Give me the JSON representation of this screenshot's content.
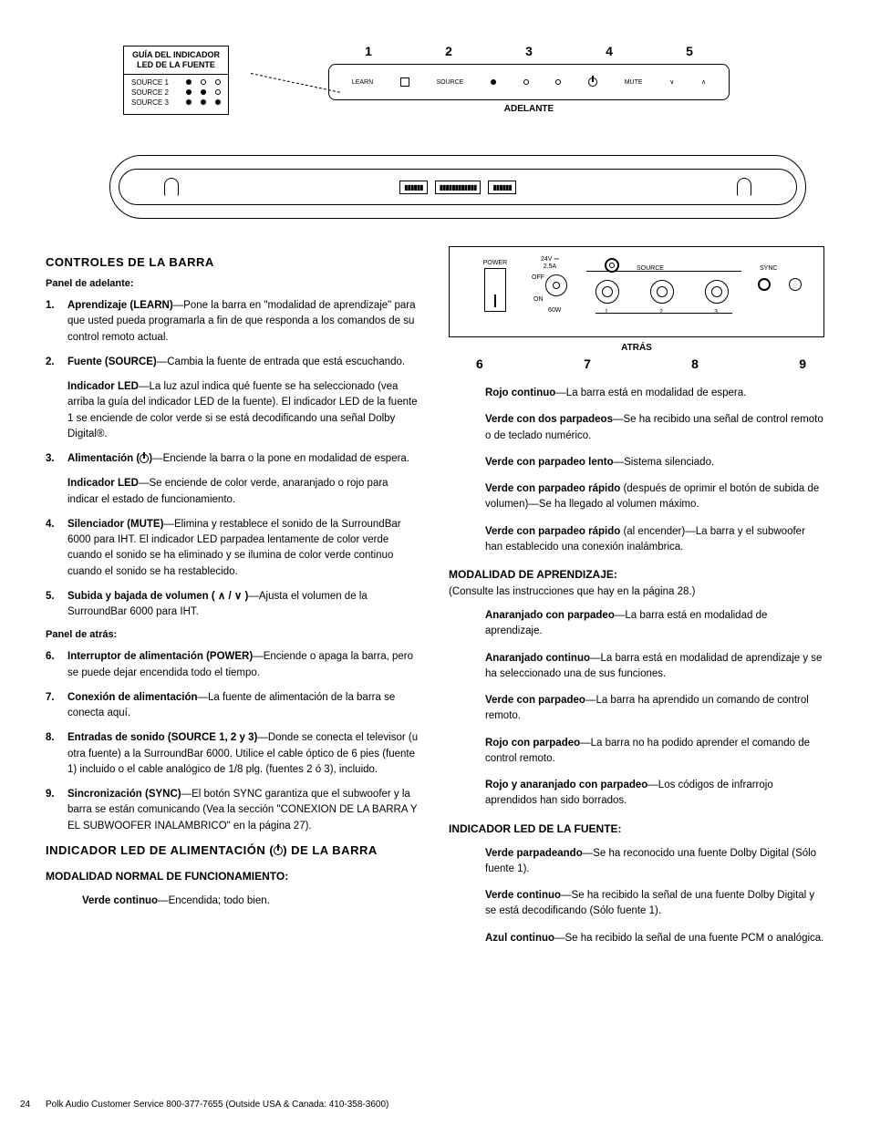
{
  "led_guide": {
    "title_l1": "GUÍA DEL INDICADOR",
    "title_l2": "LED DE LA FUENTE",
    "rows": [
      "SOURCE 1",
      "SOURCE 2",
      "SOURCE 3"
    ]
  },
  "front_nums": [
    "1",
    "2",
    "3",
    "4",
    "5"
  ],
  "front_labels": {
    "learn": "LEARN",
    "source": "SOURCE",
    "mute": "MUTE",
    "adelante": "ADELANTE"
  },
  "back_panel": {
    "power": "POWER",
    "v": "24V",
    "a": "2.5A",
    "off": "OFF",
    "on": "ON",
    "w": "60W",
    "source": "SOURCE",
    "sync": "SYNC",
    "n1": "1",
    "n2": "2",
    "n3": "3",
    "atras": "ATRÁS"
  },
  "back_nums": [
    "6",
    "7",
    "8",
    "9"
  ],
  "h_controles": "CONTROLES DE LA BARRA",
  "sub_front": "Panel de adelante:",
  "items_front": [
    {
      "n": "1.",
      "t": "Aprendizaje (LEARN)",
      "d": "—Pone la barra en \"modalidad de aprendizaje\" para que usted pueda programarla a fin de que responda a los comandos de su control remoto actual."
    },
    {
      "n": "2.",
      "t": "Fuente (SOURCE)",
      "d": "—Cambia la fuente de entrada que está escuchando."
    }
  ],
  "para_led1": {
    "t": "Indicador LED",
    "d": "—La luz azul indica qué fuente se ha seleccionado (vea arriba la guía del indicador LED de la fuente). El indicador LED de la fuente 1 se enciende de color verde si se está decodificando una señal Dolby Digital®."
  },
  "item3": {
    "n": "3.",
    "t": "Alimentación (",
    "t2": ")",
    "d": "—Enciende la barra o la pone en modalidad de espera."
  },
  "para_led2": {
    "t": "Indicador LED",
    "d": "—Se enciende de color verde, anaranjado o rojo para indicar el estado de funcionamiento."
  },
  "item4": {
    "n": "4.",
    "t": "Silenciador (MUTE)",
    "d": "—Elimina y restablece el sonido de la SurroundBar 6000 para IHT. El indicador LED parpadea lentamente de color verde cuando el sonido se ha eliminado y se ilumina de color verde continuo cuando el sonido se ha restablecido."
  },
  "item5": {
    "n": "5.",
    "t": "Subida y bajada de volumen ( ",
    "t2": " / ",
    "t3": " )",
    "d": "—Ajusta el volumen de la SurroundBar 6000 para IHT."
  },
  "sub_back": "Panel de atrás:",
  "items_back": [
    {
      "n": "6.",
      "t": "Interruptor de alimentación (POWER)",
      "d": "—Enciende o apaga la barra, pero se puede dejar encendida todo el tiempo."
    },
    {
      "n": "7.",
      "t": "Conexión de alimentación",
      "d": "—La fuente de alimentación de la barra se conecta aquí."
    },
    {
      "n": "8.",
      "t": "Entradas de sonido (SOURCE 1, 2 y 3)",
      "d": "—Donde se conecta el televisor (u otra fuente) a la SurroundBar 6000. Utilice el cable óptico de 6 pies (fuente 1) incluido o el cable analógico de 1/8 plg. (fuentes 2 ó 3), incluido."
    },
    {
      "n": "9.",
      "t": "Sincronización (SYNC)",
      "d": "—El botón SYNC garantiza que el subwoofer y la barra se están comunicando (Vea la sección \"CONEXION DE LA BARRA Y EL SUBWOOFER INALAMBRICO\" en la página 27)."
    }
  ],
  "h_led_power_a": "INDICADOR LED DE ALIMENTACIÓN (",
  "h_led_power_b": ") DE LA BARRA",
  "sub_normal": "MODALIDAD NORMAL DE FUNCIONAMIENTO:",
  "status_normal": [
    {
      "t": "Verde continuo",
      "d": "—Encendida; todo bien."
    }
  ],
  "status_right_top": [
    {
      "t": "Rojo continuo",
      "d": "—La barra está en modalidad de espera."
    },
    {
      "t": "Verde con dos parpadeos",
      "d": "—Se ha recibido una señal de control remoto o de teclado numérico."
    },
    {
      "t": "Verde con parpadeo lento",
      "d": "—Sistema silenciado."
    },
    {
      "t": "Verde con parpadeo rápido",
      "d": " (después de oprimir el botón de subida de volumen)—Se ha llegado al volumen máximo."
    },
    {
      "t": "Verde con parpadeo rápido",
      "d": " (al encender)—La barra y el subwoofer han establecido una conexión inalámbrica."
    }
  ],
  "sub_learn": "MODALIDAD DE APRENDIZAJE:",
  "note_learn": "(Consulte las instrucciones que hay en la página 28.)",
  "status_learn": [
    {
      "t": "Anaranjado con parpadeo",
      "d": "—La barra está en modalidad de aprendizaje."
    },
    {
      "t": "Anaranjado continuo",
      "d": "—La barra está en modalidad de aprendizaje y se ha seleccionado una de sus funciones."
    },
    {
      "t": "Verde con parpadeo",
      "d": "—La barra ha aprendido un comando de control remoto."
    },
    {
      "t": "Rojo con parpadeo",
      "d": "—La barra no ha podido aprender el comando de control remoto."
    },
    {
      "t": "Rojo y anaranjado con parpadeo",
      "d": "—Los códigos de infrarrojo aprendidos han sido borrados."
    }
  ],
  "sub_src_led": "INDICADOR LED DE LA FUENTE:",
  "status_src": [
    {
      "t": "Verde parpadeando",
      "d": "—Se ha reconocido una fuente Dolby Digital (Sólo fuente 1)."
    },
    {
      "t": "Verde continuo",
      "d": "—Se ha recibido la señal de una fuente Dolby Digital y se está decodificando (Sólo fuente 1)."
    },
    {
      "t": "Azul continuo",
      "d": "—Se ha recibido la señal de una fuente PCM o analógica."
    }
  ],
  "footer": "Polk Audio Customer Service 800-377-7655 (Outside USA & Canada: 410-358-3600)",
  "page": "24"
}
